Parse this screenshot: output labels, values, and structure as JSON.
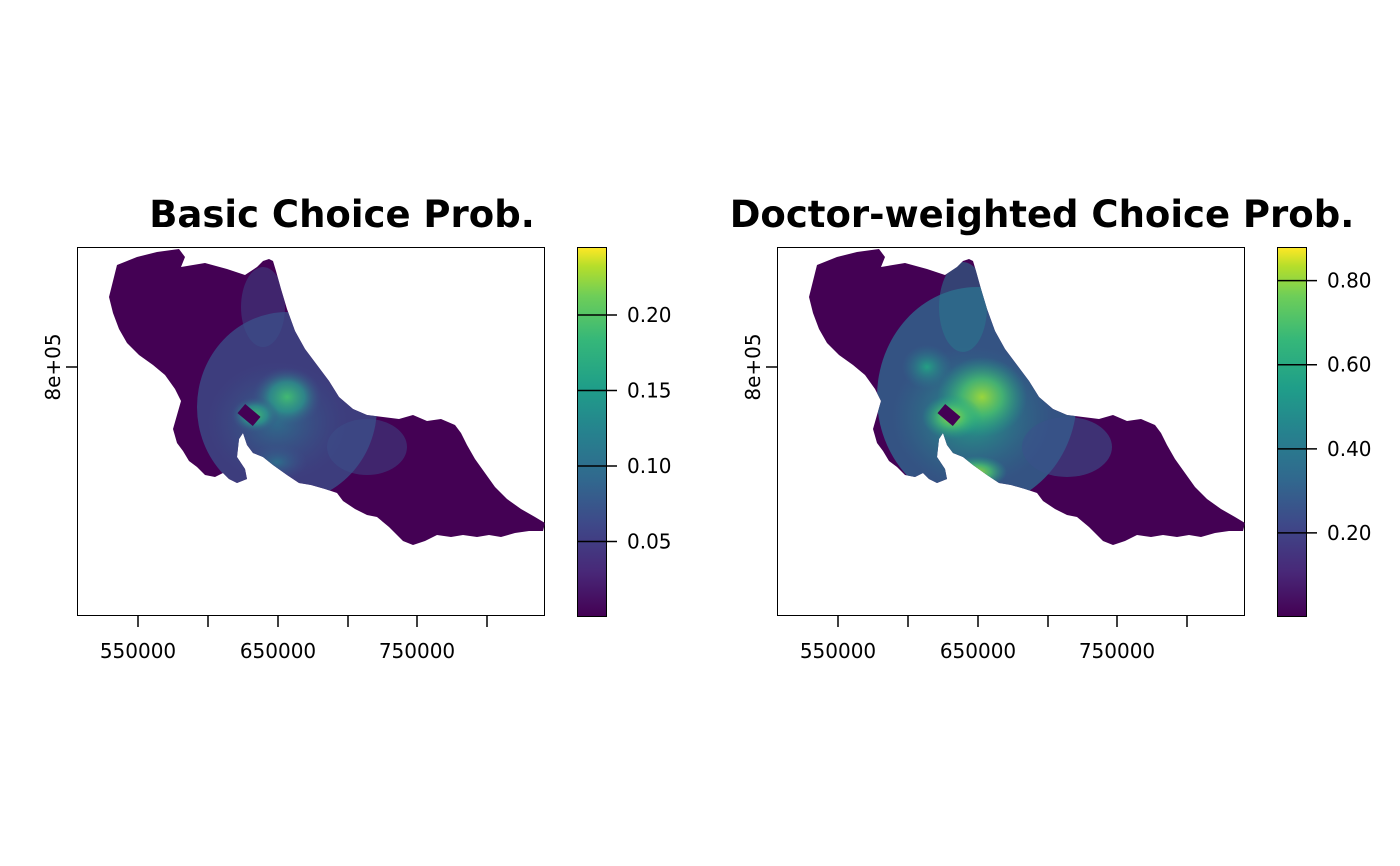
{
  "panels": [
    {
      "title": "Basic Choice Prob.",
      "x_ticks": [
        "550000",
        "650000",
        "750000"
      ],
      "y_ticks": [
        "8e+05"
      ],
      "legend_ticks": [
        {
          "label": "0.05",
          "value": 0.05
        },
        {
          "label": "0.10",
          "value": 0.1
        },
        {
          "label": "0.15",
          "value": 0.15
        },
        {
          "label": "0.20",
          "value": 0.2
        }
      ],
      "legend_range": [
        0.0,
        0.245
      ],
      "hotspot_intensity": 0.55
    },
    {
      "title": "Doctor-weighted Choice Prob.",
      "x_ticks": [
        "550000",
        "650000",
        "750000"
      ],
      "y_ticks": [
        "8e+05"
      ],
      "legend_ticks": [
        {
          "label": "0.20",
          "value": 0.2
        },
        {
          "label": "0.40",
          "value": 0.4
        },
        {
          "label": "0.60",
          "value": 0.6
        },
        {
          "label": "0.80",
          "value": 0.8
        }
      ],
      "legend_range": [
        0.0,
        0.88
      ],
      "hotspot_intensity": 0.8
    }
  ],
  "colors": {
    "viridis_low": "#440154",
    "viridis_mid": "#21908d",
    "viridis_high": "#fde725"
  }
}
